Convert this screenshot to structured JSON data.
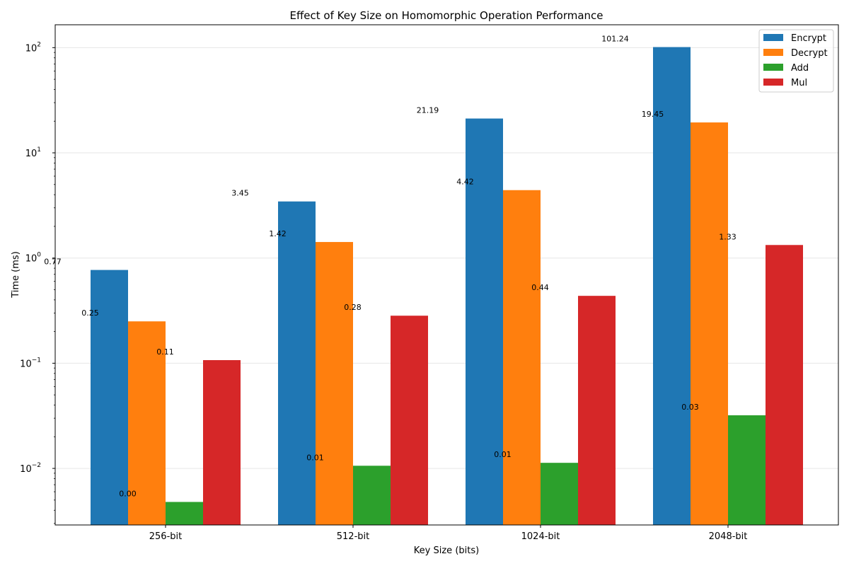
{
  "chart_data": {
    "type": "bar",
    "title": "Effect of Key Size on Homomorphic Operation Performance",
    "xlabel": "Key Size (bits)",
    "ylabel": "Time (ms)",
    "yscale": "log",
    "ylim": [
      0.0029,
      165
    ],
    "grid": "y-axis, light",
    "legend_position": "top-right",
    "categories": [
      "256-bit",
      "512-bit",
      "1024-bit",
      "2048-bit"
    ],
    "series": [
      {
        "name": "Encrypt",
        "color": "#1f77b4",
        "values": [
          0.77,
          3.45,
          21.19,
          101.24
        ],
        "labels": [
          "0.77",
          "3.45",
          "21.19",
          "101.24"
        ]
      },
      {
        "name": "Decrypt",
        "color": "#ff7f0e",
        "values": [
          0.25,
          1.42,
          4.42,
          19.45
        ],
        "labels": [
          "0.25",
          "1.42",
          "4.42",
          "19.45"
        ]
      },
      {
        "name": "Add",
        "color": "#2ca02c",
        "values": [
          0.0048,
          0.0106,
          0.0113,
          0.032
        ],
        "labels": [
          "0.00",
          "0.01",
          "0.01",
          "0.03"
        ]
      },
      {
        "name": "Mul",
        "color": "#d62728",
        "values": [
          0.107,
          0.283,
          0.437,
          1.33
        ],
        "labels": [
          "0.11",
          "0.28",
          "0.44",
          "1.33"
        ]
      }
    ],
    "yticks": [
      {
        "value": 0.01,
        "base": "10",
        "exp": "−2"
      },
      {
        "value": 0.1,
        "base": "10",
        "exp": "−1"
      },
      {
        "value": 1,
        "base": "10",
        "exp": "0"
      },
      {
        "value": 10,
        "base": "10",
        "exp": "1"
      },
      {
        "value": 100,
        "base": "10",
        "exp": "2"
      }
    ]
  }
}
